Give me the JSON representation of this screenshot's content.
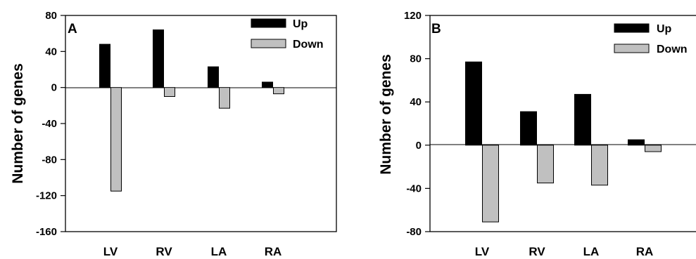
{
  "chart_data": [
    {
      "type": "bar",
      "panel_label": "A",
      "ylabel": "Number of genes",
      "xlabel": "",
      "categories": [
        "LV",
        "RV",
        "LA",
        "RA"
      ],
      "series": [
        {
          "name": "Up",
          "color": "#000000",
          "values": [
            48,
            64,
            23,
            6
          ]
        },
        {
          "name": "Down",
          "color": "#c0c0c0",
          "values": [
            -115,
            -10,
            -23,
            -7
          ]
        }
      ],
      "ylim": [
        -160,
        80
      ],
      "yticks": [
        80,
        40,
        0,
        -40,
        -80,
        -120,
        -160
      ],
      "grid": false,
      "legend": "top-right"
    },
    {
      "type": "bar",
      "panel_label": "B",
      "ylabel": "Number of genes",
      "xlabel": "",
      "categories": [
        "LV",
        "RV",
        "LA",
        "RA"
      ],
      "series": [
        {
          "name": "Up",
          "color": "#000000",
          "values": [
            77,
            31,
            47,
            5
          ]
        },
        {
          "name": "Down",
          "color": "#c0c0c0",
          "values": [
            -71,
            -35,
            -37,
            -6
          ]
        }
      ],
      "ylim": [
        -80,
        120
      ],
      "yticks": [
        120,
        80,
        40,
        0,
        -40,
        -80
      ],
      "grid": false,
      "legend": "top-right"
    }
  ]
}
